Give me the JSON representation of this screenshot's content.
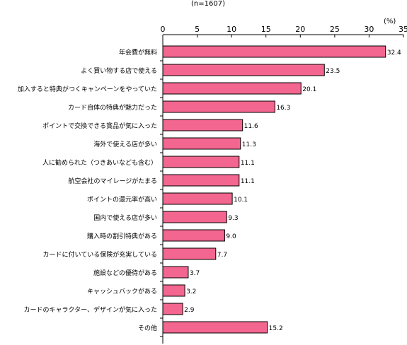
{
  "header": {
    "sample_size": "(n=1607)",
    "unit": "(%)"
  },
  "colors": {
    "bar_fill": "#f2668f",
    "bar_stroke": "#000000",
    "axis": "#000000",
    "text": "#000000"
  },
  "chart_data": {
    "type": "bar",
    "orientation": "horizontal",
    "title": "",
    "xlabel": "",
    "ylabel": "",
    "xlim": [
      0,
      35
    ],
    "x_ticks": [
      0,
      5,
      10,
      15,
      20,
      25,
      30,
      35
    ],
    "grid": false,
    "legend": "none",
    "categories": [
      "年会費が無料",
      "よく買い物する店で使える",
      "加入すると特典がつくキャンペーンをやっていた",
      "カード自体の特典が魅力だった",
      "ポイントで交換できる賞品が気に入った",
      "海外で使える店が多い",
      "人に勧められた（つきあいなども含む）",
      "航空会社のマイレージがたまる",
      "ポイントの還元率が高い",
      "国内で使える店が多い",
      "購入時の割引特典がある",
      "カードに付いている保険が充実している",
      "施設などの優待がある",
      "キャッシュバックがある",
      "カードのキャラクター、デザインが気に入った",
      "その他"
    ],
    "values": [
      32.4,
      23.5,
      20.1,
      16.3,
      11.6,
      11.3,
      11.1,
      11.1,
      10.1,
      9.3,
      9.0,
      7.7,
      3.7,
      3.2,
      2.9,
      15.2
    ],
    "value_labels": [
      "32.4",
      "23.5",
      "20.1",
      "16.3",
      "11.6",
      "11.3",
      "11.1",
      "11.1",
      "10.1",
      "9.3",
      "9.0",
      "7.7",
      "3.7",
      "3.2",
      "2.9",
      "15.2"
    ]
  }
}
